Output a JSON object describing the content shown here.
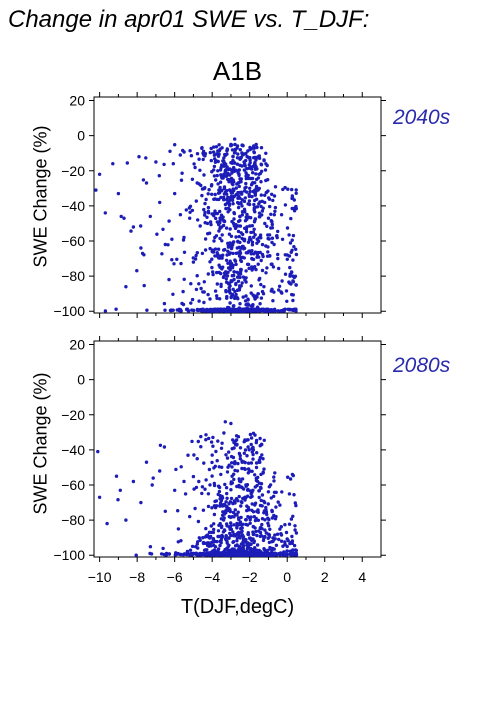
{
  "page": {
    "title": "Change in apr01 SWE vs. T_DJF:",
    "scenario": "A1B"
  },
  "colors": {
    "points": "#1c1cb8",
    "period_label": "#2a2ab0"
  },
  "chart_data": [
    {
      "type": "scatter",
      "period_label": "2040s",
      "ylabel": "SWE Change (%)",
      "xlabel": "",
      "xlim": [
        -10.3,
        5.0
      ],
      "ylim": [
        -101,
        22
      ],
      "yticks": [
        20,
        0,
        -20,
        -40,
        -60,
        -80,
        -100
      ],
      "xticks": [
        -10,
        -8,
        -6,
        -4,
        -2,
        0,
        2,
        4
      ],
      "show_x_tick_labels": false,
      "grid": false,
      "distribution": {
        "description_points_approx": 1200,
        "x_range": [
          -10.2,
          0.5
        ],
        "y_floor_value": -100,
        "peak_x": -2.7
      },
      "sample_points": [
        [
          -10.2,
          -31
        ],
        [
          -10.0,
          -22
        ],
        [
          -9.7,
          -44
        ],
        [
          -9.3,
          -16
        ],
        [
          -9.0,
          -33
        ],
        [
          -8.7,
          -47
        ],
        [
          -8.6,
          -86
        ],
        [
          -8.2,
          -52
        ],
        [
          -7.9,
          -12
        ],
        [
          -7.8,
          -64
        ],
        [
          -7.5,
          -27
        ],
        [
          -7.3,
          -46
        ],
        [
          -7.0,
          -15
        ],
        [
          -6.8,
          -38
        ],
        [
          -6.5,
          -62
        ],
        [
          -6.3,
          -82
        ],
        [
          -6.0,
          -33
        ],
        [
          -5.7,
          -11
        ],
        [
          -5.5,
          -58
        ],
        [
          -5.2,
          -47
        ],
        [
          -5.0,
          -72
        ],
        [
          -4.8,
          -27
        ],
        [
          -4.5,
          -89
        ],
        [
          -4.2,
          -41
        ],
        [
          -4.0,
          -66
        ],
        [
          -3.7,
          -20
        ],
        [
          -3.5,
          -52
        ],
        [
          -3.2,
          -78
        ],
        [
          -3.0,
          -5
        ],
        [
          -2.8,
          -2
        ],
        [
          -2.5,
          -8
        ],
        [
          -2.3,
          -15
        ],
        [
          -2.0,
          -30
        ],
        [
          -1.8,
          -55
        ],
        [
          -1.5,
          -22
        ],
        [
          -1.2,
          -38
        ],
        [
          -1.0,
          -47
        ],
        [
          -0.7,
          -62
        ],
        [
          -0.5,
          -70
        ],
        [
          -0.3,
          -45
        ],
        [
          0.0,
          -68
        ],
        [
          0.3,
          -80
        ]
      ]
    },
    {
      "type": "scatter",
      "period_label": "2080s",
      "ylabel": "SWE Change (%)",
      "xlabel": "T(DJF,degC)",
      "xlim": [
        -10.3,
        5.0
      ],
      "ylim": [
        -101,
        22
      ],
      "yticks": [
        20,
        0,
        -20,
        -40,
        -60,
        -80,
        -100
      ],
      "xticks": [
        -10,
        -8,
        -6,
        -4,
        -2,
        0,
        2,
        4
      ],
      "xticklabels": [
        "−10",
        "−8",
        "−6",
        "−4",
        "−2",
        "0",
        "2",
        "4"
      ],
      "show_x_tick_labels": true,
      "grid": false,
      "distribution": {
        "description_points_approx": 1200,
        "x_range": [
          -10.2,
          0.5
        ],
        "y_floor_value": -100,
        "peak_x": -2.5
      },
      "sample_points": [
        [
          -10.1,
          -41
        ],
        [
          -10.0,
          -67
        ],
        [
          -9.6,
          -82
        ],
        [
          -9.1,
          -55
        ],
        [
          -8.9,
          -63
        ],
        [
          -8.6,
          -80
        ],
        [
          -8.2,
          -58
        ],
        [
          -7.8,
          -70
        ],
        [
          -7.5,
          -47
        ],
        [
          -7.2,
          -60
        ],
        [
          -6.8,
          -52
        ],
        [
          -6.5,
          -75
        ],
        [
          -6.0,
          -63
        ],
        [
          -5.8,
          -85
        ],
        [
          -5.5,
          -58
        ],
        [
          -5.2,
          -78
        ],
        [
          -4.8,
          -45
        ],
        [
          -4.5,
          -90
        ],
        [
          -4.2,
          -65
        ],
        [
          -4.0,
          -43
        ],
        [
          -3.7,
          -35
        ],
        [
          -3.3,
          -24
        ],
        [
          -3.0,
          -25
        ],
        [
          -2.7,
          -32
        ],
        [
          -2.5,
          -45
        ],
        [
          -2.2,
          -60
        ],
        [
          -2.0,
          -52
        ],
        [
          -1.8,
          -40
        ],
        [
          -1.5,
          -47
        ],
        [
          -1.2,
          -70
        ],
        [
          -1.0,
          -88
        ],
        [
          -0.6,
          -78
        ],
        [
          -0.3,
          -92
        ],
        [
          0.0,
          -95
        ],
        [
          0.3,
          -97
        ]
      ]
    }
  ]
}
